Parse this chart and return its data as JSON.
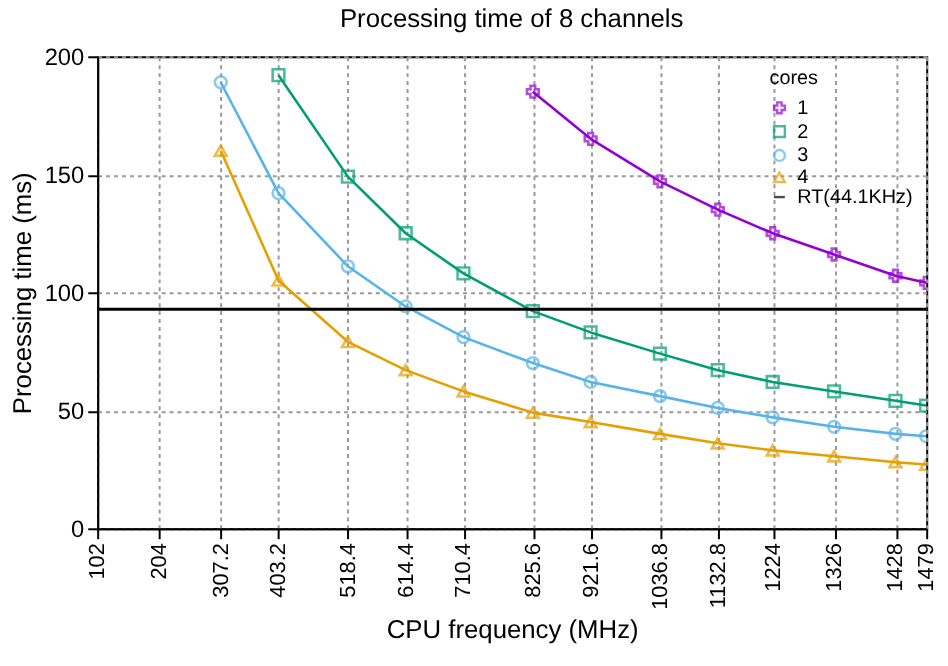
{
  "chart_data": {
    "type": "line",
    "title": "Processing time of 8 channels",
    "xlabel": "CPU frequency (MHz)",
    "ylabel": "Processing time (ms)",
    "legend_title": "cores",
    "x": [
      307.2,
      403.2,
      518.4,
      614.4,
      710.4,
      825.6,
      921.6,
      1036.8,
      1132.8,
      1224,
      1326,
      1428,
      1479
    ],
    "series": [
      {
        "name": "1",
        "color": "#9400d3",
        "marker": "cross",
        "values": [
          null,
          null,
          null,
          null,
          null,
          185,
          165,
          147,
          135,
          125,
          116,
          107,
          104
        ]
      },
      {
        "name": "2",
        "color": "#009e73",
        "marker": "square",
        "values": [
          null,
          192,
          149,
          125,
          108,
          92,
          83,
          74,
          67,
          62,
          58,
          54,
          52
        ]
      },
      {
        "name": "3",
        "color": "#56b4e9",
        "marker": "circle",
        "values": [
          189,
          142,
          111,
          94,
          81,
          70,
          62,
          56,
          51,
          47,
          43,
          40,
          39
        ]
      },
      {
        "name": "4",
        "color": "#e69f00",
        "marker": "triangle",
        "values": [
          160,
          105,
          79,
          67,
          58,
          49,
          45,
          40,
          36,
          33,
          30.5,
          28,
          27
        ]
      }
    ],
    "ref_lines": [
      {
        "axis": "y",
        "value": 92.8,
        "label": "RT(44.1KHz)",
        "color": "#000000"
      }
    ],
    "xlim": [
      102,
      1479
    ],
    "xticks": [
      102,
      204,
      307.2,
      403.2,
      518.4,
      614.4,
      710.4,
      825.6,
      921.6,
      1036.8,
      1132.8,
      1224,
      1326,
      1428,
      1479
    ],
    "ylim": [
      0,
      200
    ],
    "yticks": [
      0,
      50,
      100,
      150,
      200
    ],
    "grid": true,
    "legend": "top right",
    "line_style": "solid"
  }
}
